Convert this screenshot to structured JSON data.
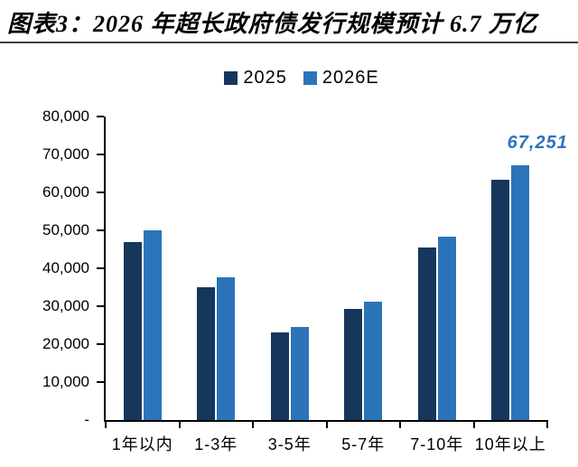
{
  "title": "图表3：2026 年超长政府债发行规模预计 6.7 万亿",
  "colors": {
    "title": "#000000",
    "divider": "#3F3F3F",
    "axis": "#000000"
  },
  "chart_data": {
    "type": "bar",
    "title": "2026 年超长政府债发行规模预计 6.7 万亿",
    "categories": [
      "1年以内",
      "1-3年",
      "3-5年",
      "5-7年",
      "7-10年",
      "10年以上"
    ],
    "series": [
      {
        "name": "2025",
        "color": "#16365C",
        "values": [
          47000,
          35000,
          23000,
          29200,
          45500,
          63400
        ]
      },
      {
        "name": "2026E",
        "color": "#2B74BA",
        "values": [
          50000,
          37500,
          24500,
          31200,
          48400,
          67251
        ]
      }
    ],
    "xlabel": "",
    "ylabel": "",
    "ylim": [
      0,
      80000
    ],
    "ytick_interval": 10000,
    "ytick_labels": [
      "-",
      "10,000",
      "20,000",
      "30,000",
      "40,000",
      "50,000",
      "60,000",
      "70,000",
      "80,000"
    ],
    "grid": false,
    "legend_position": "top-center",
    "annotation": {
      "text": "67,251",
      "series": "2026E",
      "category": "10年以上",
      "color": "#2B74BA"
    }
  }
}
